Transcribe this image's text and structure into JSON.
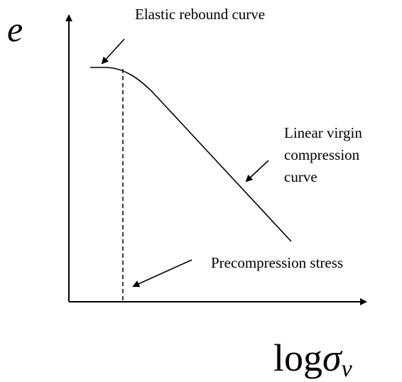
{
  "axes": {
    "y_label": "e",
    "x_label": {
      "base": "log",
      "symbol": "σ",
      "subscript": "v"
    }
  },
  "annotations": {
    "elastic_rebound": "Elastic rebound curve",
    "virgin_compression": [
      "Linear virgin",
      "compression",
      "curve"
    ],
    "precompression": "Precompression stress"
  }
}
